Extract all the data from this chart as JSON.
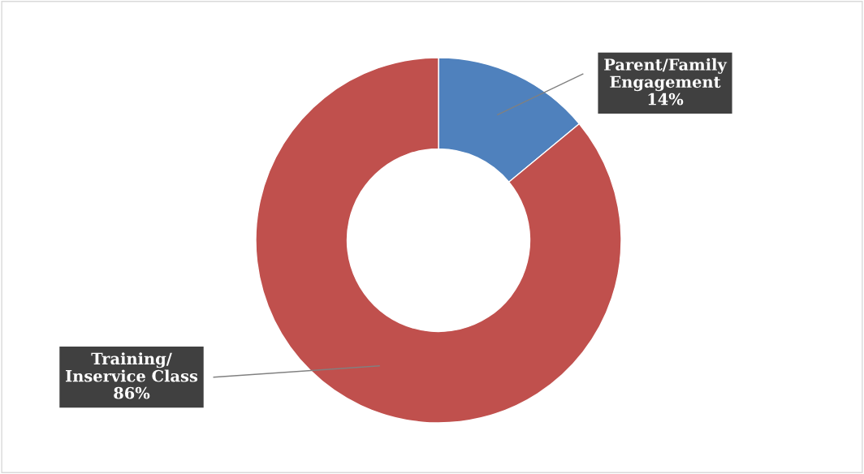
{
  "chart_data": {
    "type": "donut",
    "categories": [
      "Parent/Family\nEngagement",
      "Training/\nInservice Class"
    ],
    "values": [
      14,
      86
    ],
    "colors": [
      "#4f81bd",
      "#c0504d"
    ],
    "value_labels": [
      "14%",
      "86%"
    ],
    "legend": false
  }
}
